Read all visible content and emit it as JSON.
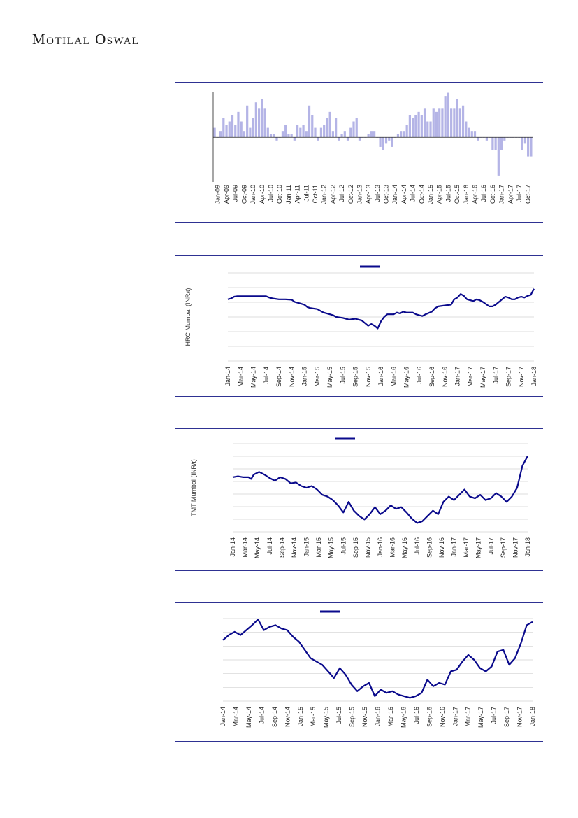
{
  "header": {
    "brand": "Motilal Oswal"
  },
  "chart_data": [
    {
      "type": "bar",
      "color": "#b4b4e6",
      "x_tick_labels": [
        "Jan-09",
        "Apr-09",
        "Jul-09",
        "Oct-09",
        "Jan-10",
        "Apr-10",
        "Jul-10",
        "Oct-10",
        "Jan-11",
        "Apr-11",
        "Jul-11",
        "Oct-11",
        "Jan-12",
        "Apr-12",
        "Jul-12",
        "Oct-12",
        "Jan-13",
        "Apr-13",
        "Jul-13",
        "Oct-13",
        "Jan-14",
        "Apr-14",
        "Jul-14",
        "Oct-14",
        "Jan-15",
        "Apr-15",
        "Jul-15",
        "Oct-15",
        "Jan-16",
        "Apr-16",
        "Jul-16",
        "Oct-16",
        "Jan-17",
        "Apr-17",
        "Jul-17",
        "Oct-17"
      ],
      "values": [
        3,
        0,
        2,
        6,
        4,
        5,
        7,
        4,
        8,
        5,
        2,
        10,
        3,
        6,
        11,
        9,
        12,
        9,
        3,
        1,
        1,
        -1,
        0,
        2,
        4,
        1,
        1,
        -1,
        4,
        3,
        4,
        2,
        10,
        7,
        3,
        -1,
        3,
        4,
        6,
        8,
        2,
        6,
        -1,
        1,
        2,
        -1,
        3,
        5,
        6,
        -1,
        0,
        0,
        1,
        2,
        2,
        0,
        -3,
        -4,
        -2,
        -1,
        -3,
        0,
        1,
        2,
        2,
        4,
        7,
        6,
        7,
        8,
        7,
        9,
        5,
        5,
        9,
        8,
        9,
        9,
        13,
        14,
        9,
        9,
        12,
        9,
        10,
        5,
        3,
        2,
        2,
        -1,
        0,
        0,
        -1,
        0,
        -4,
        -4,
        -12,
        -4,
        -1,
        0,
        0,
        0,
        0,
        0,
        -4,
        -2,
        -6,
        -6
      ],
      "ylim": [
        -14,
        15
      ]
    },
    {
      "type": "line",
      "legend": "",
      "ylabel": "HRC Mumbai (INR/t)",
      "color": "#0a0a8c",
      "x_tick_labels": [
        "Jan-14",
        "Mar-14",
        "May-14",
        "Jul-14",
        "Sep-14",
        "Nov-14",
        "Jan-15",
        "Mar-15",
        "May-15",
        "Jul-15",
        "Sep-15",
        "Nov-15",
        "Jan-16",
        "Mar-16",
        "May-16",
        "Jul-16",
        "Sep-16",
        "Nov-16",
        "Jan-17",
        "Mar-17",
        "May-17",
        "Jul-17",
        "Sep-17",
        "Nov-17",
        "Jan-18"
      ],
      "y_gridlines": 6,
      "series": [
        {
          "x": 0,
          "y": 0.7
        },
        {
          "x": 0.5,
          "y": 0.71
        },
        {
          "x": 1,
          "y": 0.73
        },
        {
          "x": 1.5,
          "y": 0.735
        },
        {
          "x": 2,
          "y": 0.735
        },
        {
          "x": 3,
          "y": 0.735
        },
        {
          "x": 4,
          "y": 0.735
        },
        {
          "x": 5,
          "y": 0.735
        },
        {
          "x": 6,
          "y": 0.735
        },
        {
          "x": 6.5,
          "y": 0.72
        },
        {
          "x": 7,
          "y": 0.71
        },
        {
          "x": 8,
          "y": 0.7
        },
        {
          "x": 9,
          "y": 0.7
        },
        {
          "x": 10,
          "y": 0.695
        },
        {
          "x": 10.5,
          "y": 0.67
        },
        {
          "x": 11,
          "y": 0.66
        },
        {
          "x": 12,
          "y": 0.64
        },
        {
          "x": 12.5,
          "y": 0.61
        },
        {
          "x": 13,
          "y": 0.6
        },
        {
          "x": 14,
          "y": 0.59
        },
        {
          "x": 14.5,
          "y": 0.57
        },
        {
          "x": 15,
          "y": 0.55
        },
        {
          "x": 16,
          "y": 0.53
        },
        {
          "x": 16.5,
          "y": 0.52
        },
        {
          "x": 17,
          "y": 0.5
        },
        {
          "x": 18,
          "y": 0.49
        },
        {
          "x": 18.5,
          "y": 0.48
        },
        {
          "x": 19,
          "y": 0.47
        },
        {
          "x": 20,
          "y": 0.48
        },
        {
          "x": 20.5,
          "y": 0.47
        },
        {
          "x": 21,
          "y": 0.46
        },
        {
          "x": 21.5,
          "y": 0.43
        },
        {
          "x": 22,
          "y": 0.4
        },
        {
          "x": 22.5,
          "y": 0.42
        },
        {
          "x": 23,
          "y": 0.4
        },
        {
          "x": 23.5,
          "y": 0.37
        },
        {
          "x": 24,
          "y": 0.45
        },
        {
          "x": 24.5,
          "y": 0.5
        },
        {
          "x": 25,
          "y": 0.53
        },
        {
          "x": 26,
          "y": 0.53
        },
        {
          "x": 26.5,
          "y": 0.55
        },
        {
          "x": 27,
          "y": 0.54
        },
        {
          "x": 27.5,
          "y": 0.56
        },
        {
          "x": 28,
          "y": 0.55
        },
        {
          "x": 29,
          "y": 0.55
        },
        {
          "x": 29.5,
          "y": 0.53
        },
        {
          "x": 30,
          "y": 0.52
        },
        {
          "x": 30.5,
          "y": 0.51
        },
        {
          "x": 31,
          "y": 0.53
        },
        {
          "x": 32,
          "y": 0.56
        },
        {
          "x": 32.5,
          "y": 0.6
        },
        {
          "x": 33,
          "y": 0.62
        },
        {
          "x": 34,
          "y": 0.63
        },
        {
          "x": 35,
          "y": 0.64
        },
        {
          "x": 35.5,
          "y": 0.7
        },
        {
          "x": 36,
          "y": 0.72
        },
        {
          "x": 36.5,
          "y": 0.76
        },
        {
          "x": 37,
          "y": 0.74
        },
        {
          "x": 37.5,
          "y": 0.7
        },
        {
          "x": 38,
          "y": 0.69
        },
        {
          "x": 38.5,
          "y": 0.68
        },
        {
          "x": 39,
          "y": 0.7
        },
        {
          "x": 39.5,
          "y": 0.69
        },
        {
          "x": 40,
          "y": 0.67
        },
        {
          "x": 41,
          "y": 0.62
        },
        {
          "x": 41.5,
          "y": 0.62
        },
        {
          "x": 42,
          "y": 0.64
        },
        {
          "x": 42.5,
          "y": 0.67
        },
        {
          "x": 43,
          "y": 0.7
        },
        {
          "x": 43.5,
          "y": 0.73
        },
        {
          "x": 44,
          "y": 0.72
        },
        {
          "x": 44.5,
          "y": 0.7
        },
        {
          "x": 45,
          "y": 0.7
        },
        {
          "x": 45.5,
          "y": 0.72
        },
        {
          "x": 46,
          "y": 0.73
        },
        {
          "x": 46.5,
          "y": 0.72
        },
        {
          "x": 47,
          "y": 0.74
        },
        {
          "x": 47.5,
          "y": 0.75
        },
        {
          "x": 48,
          "y": 0.82
        }
      ]
    },
    {
      "type": "line",
      "legend": "",
      "ylabel": "TMT Mumbai (INR/t)",
      "color": "#0a0a8c",
      "x_tick_labels": [
        "Jan-14",
        "Mar-14",
        "May-14",
        "Jul-14",
        "Sep-14",
        "Nov-14",
        "Jan-15",
        "Mar-15",
        "May-15",
        "Jul-15",
        "Sep-15",
        "Nov-15",
        "Jan-16",
        "Mar-16",
        "May-16",
        "Jul-16",
        "Sep-16",
        "Nov-16",
        "Jan-17",
        "Mar-17",
        "May-17",
        "Jul-17",
        "Sep-17",
        "Nov-17",
        "Jan-18"
      ],
      "y_gridlines": 7,
      "series": [
        {
          "x": 0,
          "y": 0.62
        },
        {
          "x": 1,
          "y": 0.63
        },
        {
          "x": 2,
          "y": 0.62
        },
        {
          "x": 3,
          "y": 0.62
        },
        {
          "x": 3.5,
          "y": 0.6
        },
        {
          "x": 4,
          "y": 0.65
        },
        {
          "x": 5,
          "y": 0.68
        },
        {
          "x": 6,
          "y": 0.65
        },
        {
          "x": 7,
          "y": 0.61
        },
        {
          "x": 8,
          "y": 0.58
        },
        {
          "x": 9,
          "y": 0.62
        },
        {
          "x": 10,
          "y": 0.6
        },
        {
          "x": 11,
          "y": 0.55
        },
        {
          "x": 12,
          "y": 0.56
        },
        {
          "x": 13,
          "y": 0.52
        },
        {
          "x": 14,
          "y": 0.5
        },
        {
          "x": 15,
          "y": 0.52
        },
        {
          "x": 16,
          "y": 0.48
        },
        {
          "x": 17,
          "y": 0.42
        },
        {
          "x": 18,
          "y": 0.4
        },
        {
          "x": 19,
          "y": 0.36
        },
        {
          "x": 20,
          "y": 0.3
        },
        {
          "x": 21,
          "y": 0.22
        },
        {
          "x": 22,
          "y": 0.34
        },
        {
          "x": 23,
          "y": 0.24
        },
        {
          "x": 24,
          "y": 0.18
        },
        {
          "x": 25,
          "y": 0.14
        },
        {
          "x": 26,
          "y": 0.2
        },
        {
          "x": 27,
          "y": 0.28
        },
        {
          "x": 28,
          "y": 0.2
        },
        {
          "x": 29,
          "y": 0.24
        },
        {
          "x": 30,
          "y": 0.3
        },
        {
          "x": 31,
          "y": 0.26
        },
        {
          "x": 32,
          "y": 0.28
        },
        {
          "x": 33,
          "y": 0.22
        },
        {
          "x": 34,
          "y": 0.15
        },
        {
          "x": 35,
          "y": 0.1
        },
        {
          "x": 36,
          "y": 0.12
        },
        {
          "x": 37,
          "y": 0.18
        },
        {
          "x": 38,
          "y": 0.24
        },
        {
          "x": 39,
          "y": 0.2
        },
        {
          "x": 40,
          "y": 0.34
        },
        {
          "x": 41,
          "y": 0.4
        },
        {
          "x": 42,
          "y": 0.36
        },
        {
          "x": 43,
          "y": 0.42
        },
        {
          "x": 44,
          "y": 0.48
        },
        {
          "x": 45,
          "y": 0.4
        },
        {
          "x": 46,
          "y": 0.38
        },
        {
          "x": 47,
          "y": 0.42
        },
        {
          "x": 48,
          "y": 0.36
        },
        {
          "x": 49,
          "y": 0.38
        },
        {
          "x": 50,
          "y": 0.44
        },
        {
          "x": 51,
          "y": 0.4
        },
        {
          "x": 52,
          "y": 0.34
        },
        {
          "x": 53,
          "y": 0.4
        },
        {
          "x": 54,
          "y": 0.5
        },
        {
          "x": 55,
          "y": 0.75
        },
        {
          "x": 56,
          "y": 0.86
        }
      ]
    },
    {
      "type": "line",
      "legend": "",
      "ylabel": "",
      "color": "#0a0a8c",
      "x_tick_labels": [
        "Jan-14",
        "Mar-14",
        "May-14",
        "Jul-14",
        "Sep-14",
        "Nov-14",
        "Jan-15",
        "Mar-15",
        "May-15",
        "Jul-15",
        "Sep-15",
        "Nov-15",
        "Jan-16",
        "Mar-16",
        "May-16",
        "Jul-16",
        "Sep-16",
        "Nov-16",
        "Jan-17",
        "Mar-17",
        "May-17",
        "Jul-17",
        "Sep-17",
        "Nov-17",
        "Jan-18"
      ],
      "y_gridlines": 6,
      "series": [
        {
          "x": 0,
          "y": 0.74
        },
        {
          "x": 1,
          "y": 0.8
        },
        {
          "x": 2,
          "y": 0.84
        },
        {
          "x": 3,
          "y": 0.8
        },
        {
          "x": 4,
          "y": 0.86
        },
        {
          "x": 5,
          "y": 0.92
        },
        {
          "x": 6,
          "y": 0.99
        },
        {
          "x": 7,
          "y": 0.86
        },
        {
          "x": 8,
          "y": 0.9
        },
        {
          "x": 9,
          "y": 0.92
        },
        {
          "x": 10,
          "y": 0.88
        },
        {
          "x": 11,
          "y": 0.86
        },
        {
          "x": 12,
          "y": 0.78
        },
        {
          "x": 13,
          "y": 0.72
        },
        {
          "x": 14,
          "y": 0.62
        },
        {
          "x": 15,
          "y": 0.52
        },
        {
          "x": 16,
          "y": 0.48
        },
        {
          "x": 17,
          "y": 0.44
        },
        {
          "x": 18,
          "y": 0.36
        },
        {
          "x": 19,
          "y": 0.28
        },
        {
          "x": 20,
          "y": 0.4
        },
        {
          "x": 21,
          "y": 0.32
        },
        {
          "x": 22,
          "y": 0.2
        },
        {
          "x": 23,
          "y": 0.12
        },
        {
          "x": 24,
          "y": 0.18
        },
        {
          "x": 25,
          "y": 0.22
        },
        {
          "x": 26,
          "y": 0.06
        },
        {
          "x": 27,
          "y": 0.14
        },
        {
          "x": 28,
          "y": 0.1
        },
        {
          "x": 29,
          "y": 0.12
        },
        {
          "x": 30,
          "y": 0.08
        },
        {
          "x": 31,
          "y": 0.06
        },
        {
          "x": 32,
          "y": 0.04
        },
        {
          "x": 33,
          "y": 0.06
        },
        {
          "x": 34,
          "y": 0.1
        },
        {
          "x": 35,
          "y": 0.26
        },
        {
          "x": 36,
          "y": 0.18
        },
        {
          "x": 37,
          "y": 0.22
        },
        {
          "x": 38,
          "y": 0.2
        },
        {
          "x": 39,
          "y": 0.36
        },
        {
          "x": 40,
          "y": 0.38
        },
        {
          "x": 41,
          "y": 0.48
        },
        {
          "x": 42,
          "y": 0.56
        },
        {
          "x": 43,
          "y": 0.5
        },
        {
          "x": 44,
          "y": 0.4
        },
        {
          "x": 45,
          "y": 0.36
        },
        {
          "x": 46,
          "y": 0.42
        },
        {
          "x": 47,
          "y": 0.6
        },
        {
          "x": 48,
          "y": 0.62
        },
        {
          "x": 49,
          "y": 0.44
        },
        {
          "x": 50,
          "y": 0.52
        },
        {
          "x": 51,
          "y": 0.7
        },
        {
          "x": 52,
          "y": 0.92
        },
        {
          "x": 53,
          "y": 0.96
        }
      ]
    }
  ]
}
